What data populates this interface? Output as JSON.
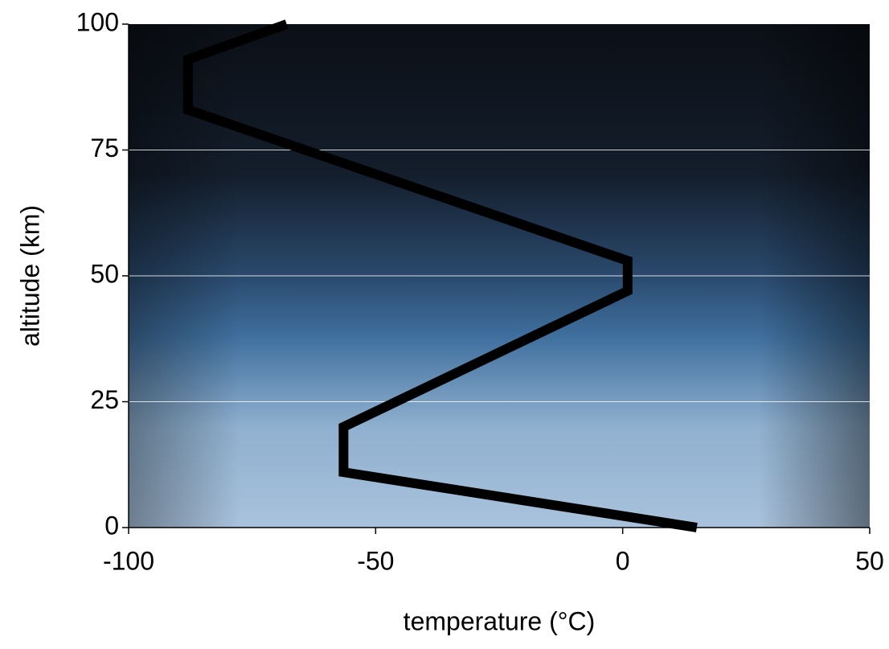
{
  "chart_data": {
    "type": "line",
    "x_label": "temperature (°C)",
    "y_label": "altitude (km)",
    "x": [
      15,
      -56.5,
      -56.5,
      1,
      1,
      -88,
      -88,
      -68
    ],
    "values": [
      0,
      11,
      20,
      47,
      53,
      83,
      93,
      100
    ],
    "color": "#000000",
    "xlim": [
      -100,
      50
    ],
    "xticks": [
      -100,
      -50,
      0,
      50
    ],
    "ylim": [
      0,
      100
    ],
    "yticks": [
      0,
      25,
      50,
      75,
      100
    ],
    "grid": true
  }
}
